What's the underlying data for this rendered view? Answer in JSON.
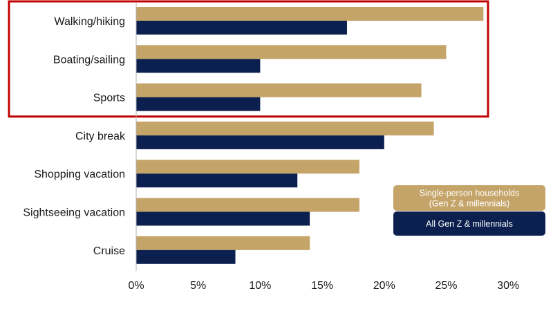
{
  "colors": {
    "single": "#c4a468",
    "all": "#0c2050",
    "highlight": "#c00000",
    "axis": "#b0b0b0"
  },
  "chart_data": {
    "type": "bar",
    "orientation": "horizontal",
    "categories": [
      "Walking/hiking",
      "Boating/sailing",
      "Sports",
      "City break",
      "Shopping vacation",
      "Sightseeing vacation",
      "Cruise"
    ],
    "series": [
      {
        "name": "Single-person households (Gen Z & millennials)",
        "legend_lines": [
          "Single-person households",
          "(Gen Z & millennials)"
        ],
        "color": "#c4a468",
        "values": [
          28,
          25,
          23,
          24,
          18,
          18,
          14
        ]
      },
      {
        "name": "All Gen Z & millennials",
        "legend_lines": [
          "All Gen Z & millennials"
        ],
        "color": "#0c2050",
        "values": [
          17,
          10,
          10,
          20,
          13,
          14,
          8
        ]
      }
    ],
    "xticks": [
      "0%",
      "5%",
      "10%",
      "15%",
      "20%",
      "25%",
      "30%"
    ],
    "xlim": [
      0,
      30
    ],
    "highlighted_categories": [
      "Walking/hiking",
      "Boating/sailing",
      "Sports"
    ],
    "legend_position": "right",
    "grid": false
  }
}
